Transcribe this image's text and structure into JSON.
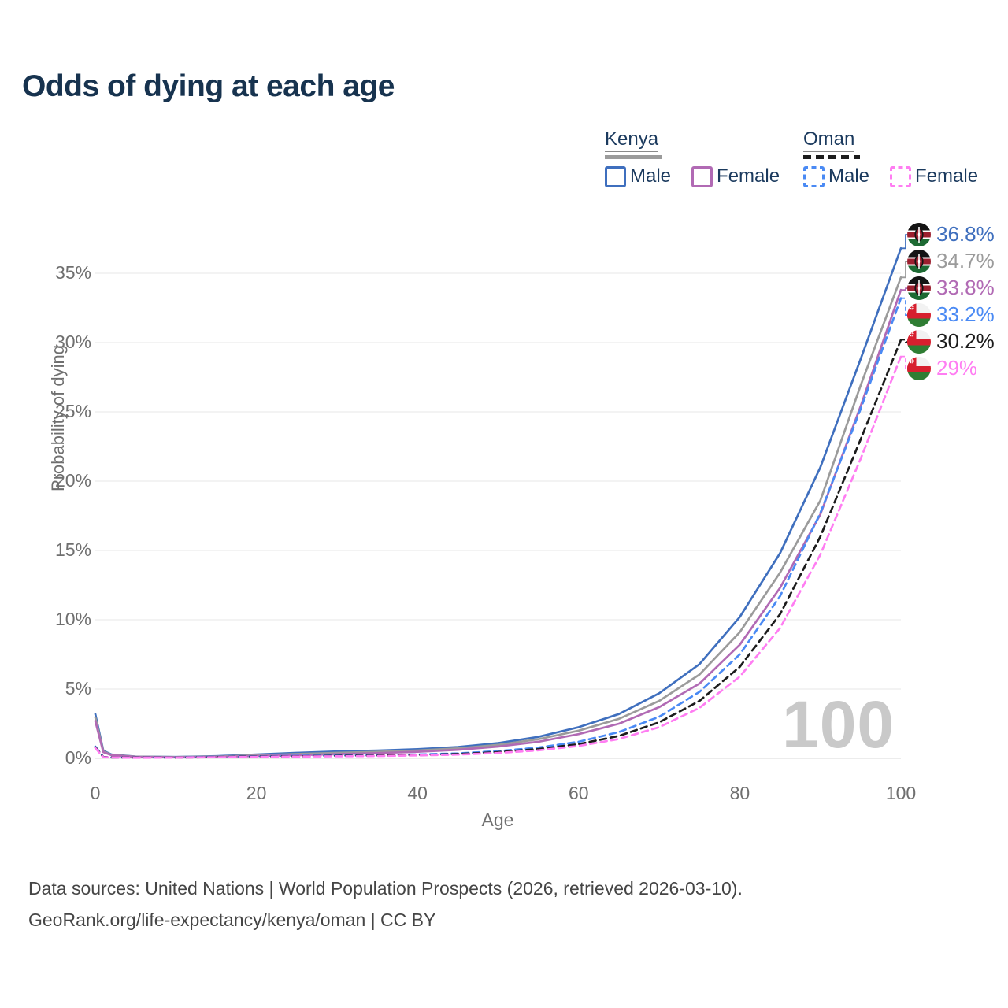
{
  "title": "Odds of dying at each age",
  "legend": {
    "groups": [
      {
        "name": "Kenya",
        "bar_color": "#9b9b9b",
        "bar_style": "solid",
        "items": [
          {
            "label": "Male",
            "color": "#3f6fbe",
            "style": "solid"
          },
          {
            "label": "Female",
            "color": "#b16ab4",
            "style": "solid"
          }
        ]
      },
      {
        "name": "Oman",
        "bar_color": "#1c1c1c",
        "bar_style": "dashed",
        "items": [
          {
            "label": "Male",
            "color": "#4a8af4",
            "style": "dashed"
          },
          {
            "label": "Female",
            "color": "#ff7df2",
            "style": "dashed"
          }
        ]
      }
    ]
  },
  "chart_data": {
    "type": "line",
    "title": "Odds of dying at each age",
    "xlabel": "Age",
    "ylabel": "Probability of dying",
    "xlim": [
      0,
      100
    ],
    "ylim": [
      0,
      38.5
    ],
    "grid": "horizontal",
    "x_ticks": [
      0,
      20,
      40,
      60,
      80,
      100
    ],
    "y_ticks": [
      0,
      5,
      10,
      15,
      20,
      25,
      30,
      35
    ],
    "y_tick_labels": [
      "0%",
      "5%",
      "10%",
      "15%",
      "20%",
      "25%",
      "30%",
      "35%"
    ],
    "watermark": "100",
    "x": [
      0,
      1,
      2,
      5,
      10,
      15,
      20,
      25,
      30,
      35,
      40,
      45,
      50,
      55,
      60,
      65,
      70,
      75,
      80,
      85,
      90,
      95,
      100
    ],
    "series": [
      {
        "name": "Kenya Male",
        "country": "kenya",
        "color": "#3f6fbe",
        "dash": false,
        "end_label": "36.8%",
        "values": [
          3.2,
          0.55,
          0.28,
          0.13,
          0.1,
          0.16,
          0.28,
          0.4,
          0.5,
          0.56,
          0.66,
          0.82,
          1.1,
          1.55,
          2.25,
          3.2,
          4.7,
          6.8,
          10.2,
          14.8,
          21.0,
          28.8,
          36.8
        ]
      },
      {
        "name": "Kenya",
        "country": "kenya",
        "color": "#9b9b9b",
        "dash": false,
        "end_label": "34.7%",
        "values": [
          2.95,
          0.5,
          0.25,
          0.12,
          0.09,
          0.13,
          0.22,
          0.31,
          0.4,
          0.47,
          0.57,
          0.72,
          0.97,
          1.38,
          2.0,
          2.85,
          4.15,
          6.05,
          9.1,
          13.4,
          18.6,
          26.9,
          34.7
        ]
      },
      {
        "name": "Kenya Female",
        "country": "kenya",
        "color": "#b16ab4",
        "dash": false,
        "end_label": "33.8%",
        "values": [
          2.7,
          0.45,
          0.23,
          0.11,
          0.08,
          0.11,
          0.17,
          0.23,
          0.3,
          0.38,
          0.48,
          0.62,
          0.85,
          1.2,
          1.75,
          2.5,
          3.7,
          5.4,
          8.2,
          12.3,
          17.6,
          25.4,
          33.8
        ]
      },
      {
        "name": "Oman Male",
        "country": "oman",
        "color": "#4a8af4",
        "dash": true,
        "end_label": "33.2%",
        "values": [
          0.85,
          0.1,
          0.07,
          0.05,
          0.06,
          0.1,
          0.15,
          0.18,
          0.21,
          0.24,
          0.28,
          0.36,
          0.52,
          0.78,
          1.2,
          1.9,
          3.0,
          4.8,
          7.5,
          11.7,
          17.7,
          25.2,
          33.2
        ]
      },
      {
        "name": "Oman",
        "country": "oman",
        "color": "#1c1c1c",
        "dash": true,
        "end_label": "30.2%",
        "values": [
          0.8,
          0.09,
          0.06,
          0.05,
          0.05,
          0.09,
          0.13,
          0.15,
          0.18,
          0.2,
          0.24,
          0.31,
          0.45,
          0.67,
          1.03,
          1.62,
          2.6,
          4.15,
          6.6,
          10.4,
          16.0,
          23.0,
          30.2
        ]
      },
      {
        "name": "Oman Female",
        "country": "oman",
        "color": "#ff7df2",
        "dash": true,
        "end_label": "29%",
        "values": [
          0.75,
          0.08,
          0.06,
          0.04,
          0.05,
          0.08,
          0.11,
          0.13,
          0.15,
          0.17,
          0.21,
          0.27,
          0.39,
          0.58,
          0.9,
          1.4,
          2.25,
          3.65,
          5.9,
          9.4,
          14.7,
          21.6,
          29.0
        ]
      }
    ]
  },
  "footer": {
    "line1": "Data sources: United Nations | World Population Prospects (2026, retrieved 2026-03-10).",
    "line2": "GeoRank.org/life-expectancy/kenya/oman | CC BY"
  }
}
